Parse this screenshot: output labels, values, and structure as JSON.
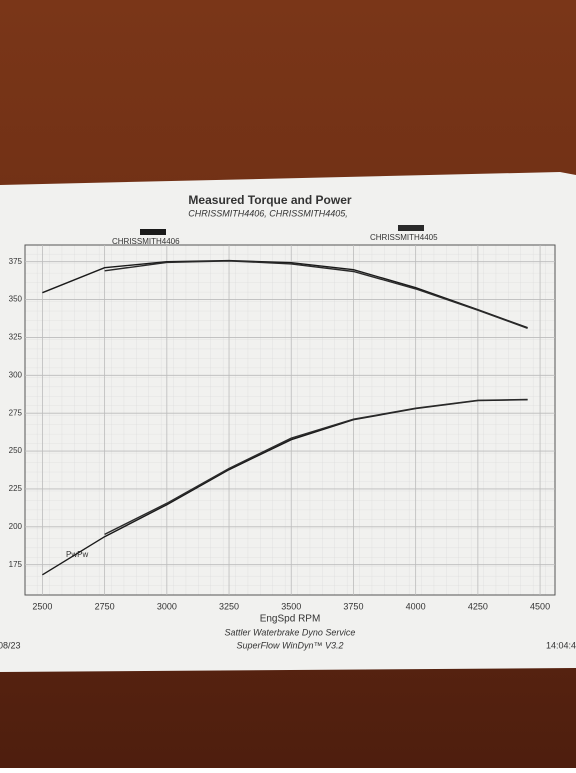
{
  "chart_data": {
    "type": "line",
    "title": "Measured Torque and Power",
    "subtitle": "CHRISSMITH4406, CHRISSMITH4405,",
    "x_label": "EngSpd RPM",
    "footer": [
      "Sattler Waterbrake Dyno Service",
      "SuperFlow WinDyn™ V3.2"
    ],
    "date": "08/23",
    "time": "14:04:4",
    "curve_label": "PwPw",
    "x": [
      2500,
      2750,
      3000,
      3250,
      3500,
      3750,
      4000,
      4250,
      4450
    ],
    "series": [
      {
        "name": "CHRISSMITH4406",
        "color": "#1a1a1a",
        "torque": [
          354.5,
          371,
          375,
          375.7,
          374.3,
          369.7,
          357.8,
          343.3,
          331.4
        ],
        "power": [
          168.3,
          193.5,
          214.6,
          237.7,
          257.5,
          270.7,
          278,
          283.3,
          283.9
        ]
      },
      {
        "name": "CHRISSMITH4405",
        "color": "#2a2a2a",
        "torque": [
          null,
          369,
          374.5,
          375.5,
          373.5,
          368.5,
          357,
          343,
          331
        ],
        "power": [
          null,
          195,
          215.5,
          238.5,
          258.5,
          271,
          278.3,
          283.5,
          284
        ]
      }
    ],
    "xlim": [
      2430,
      4560
    ],
    "xticks": [
      2500,
      2750,
      3000,
      3250,
      3500,
      3750,
      4000,
      4250,
      4500
    ],
    "ylim": [
      155,
      386
    ],
    "yticks": [
      175,
      200,
      225,
      250,
      275,
      300,
      325,
      350,
      375
    ],
    "grid": true
  }
}
